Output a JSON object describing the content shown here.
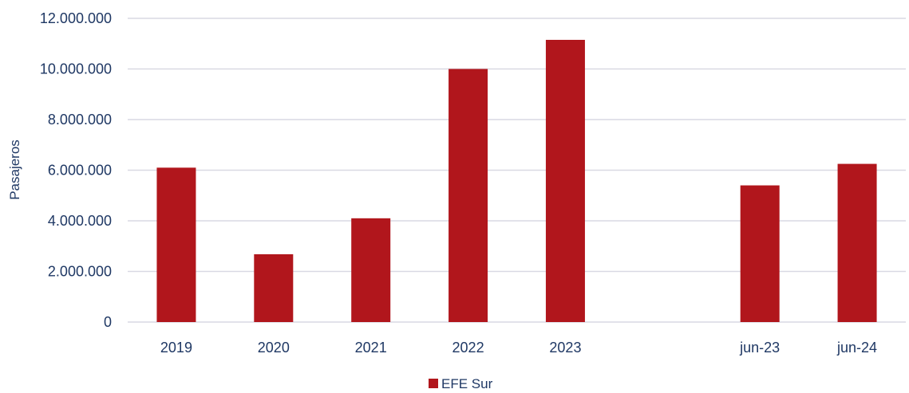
{
  "chart_data": {
    "type": "bar",
    "title": "",
    "xlabel": "",
    "ylabel": "Pasajeros",
    "categories": [
      "2019",
      "2020",
      "2021",
      "2022",
      "2023",
      "",
      "jun-23",
      "jun-24"
    ],
    "series": [
      {
        "name": "EFE Sur",
        "values": [
          6100000,
          2680000,
          4100000,
          10000000,
          11150000,
          null,
          5400000,
          6250000
        ]
      }
    ],
    "y_ticks": [
      "0",
      "2.000.000",
      "4.000.000",
      "6.000.000",
      "8.000.000",
      "10.000.000",
      "12.000.000"
    ],
    "ylim": [
      0,
      12000000
    ],
    "grid": true,
    "legend": "bottom-center",
    "colors": {
      "bar": "#b1161c",
      "text": "#1f3864",
      "grid": "#d9d9e3"
    }
  }
}
